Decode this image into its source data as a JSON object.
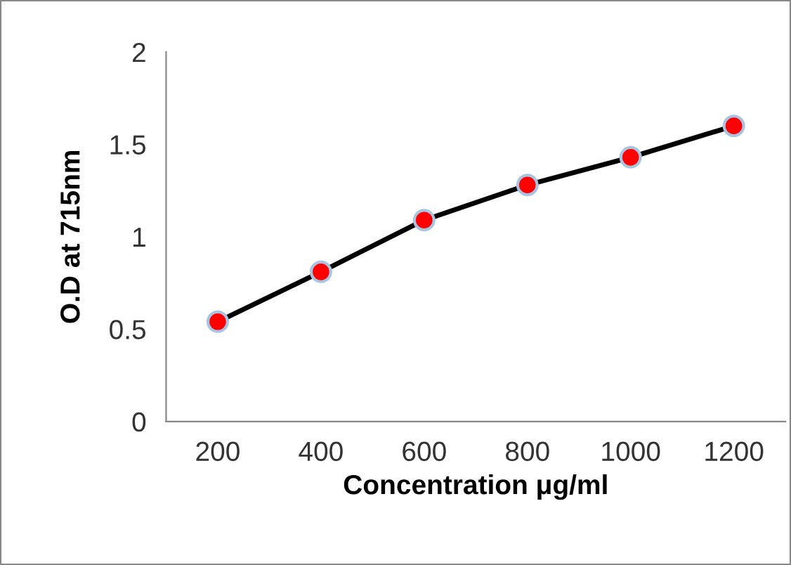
{
  "chart_data": {
    "type": "line",
    "xlabel": "Concentration μg/ml",
    "ylabel": "O.D at 715nm",
    "categories": [
      "200",
      "400",
      "600",
      "800",
      "1000",
      "1200"
    ],
    "series": [
      {
        "color": "#ff0000",
        "values": [
          0.54,
          0.81,
          1.09,
          1.28,
          1.43,
          1.6
        ]
      }
    ],
    "ylim": [
      0,
      2
    ],
    "yticks": [
      0,
      0.5,
      1,
      1.5,
      2
    ],
    "grid": false,
    "marker": "circle",
    "line_style": "solid"
  }
}
